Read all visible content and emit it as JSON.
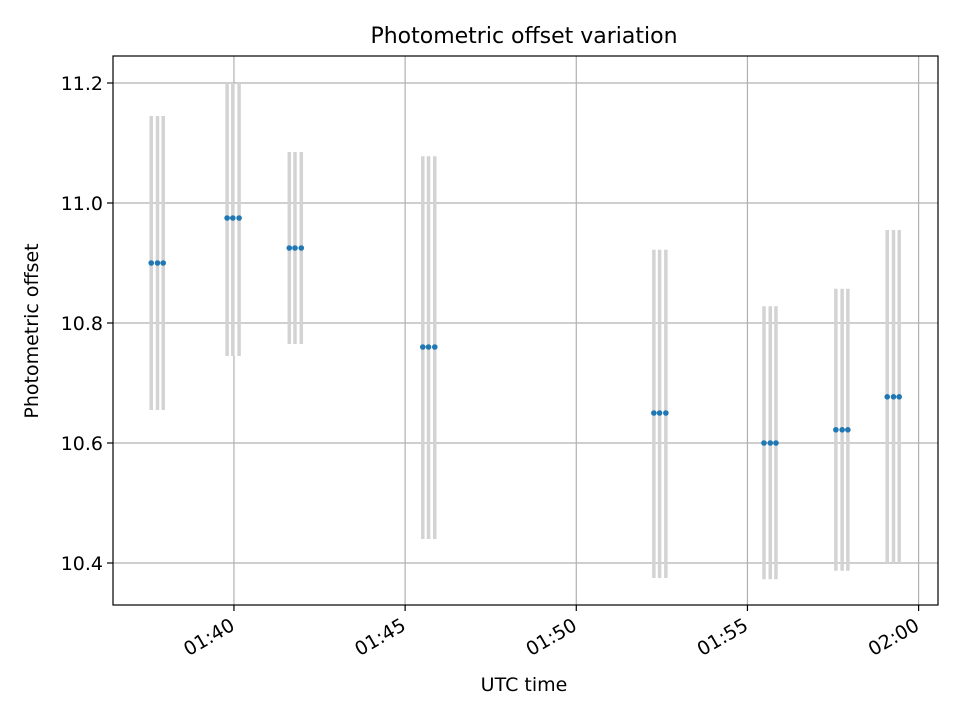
{
  "chart_data": {
    "type": "scatter",
    "title": "Photometric offset variation",
    "xlabel": "UTC time",
    "ylabel": "Photometric offset",
    "x_tick_labels": [
      "01:40",
      "01:45",
      "01:50",
      "01:55",
      "02:00"
    ],
    "x_ticks": [
      "01:40",
      "01:45",
      "01:50",
      "01:55",
      "02:00"
    ],
    "y_ticks": [
      10.4,
      10.6,
      10.8,
      11.0,
      11.2
    ],
    "y_tick_labels": [
      "10.4",
      "10.6",
      "10.8",
      "11.0",
      "11.2"
    ],
    "xlim": [
      "01:36:28",
      "02:00:34"
    ],
    "ylim": [
      10.33,
      11.245
    ],
    "grid": true,
    "legend": "none",
    "marker_color": "#1f77b4",
    "errorbar_color": "#d3d3d3",
    "points": [
      {
        "x": "01:37:35",
        "y": 10.9,
        "yerr_low": 10.655,
        "yerr_high": 11.145
      },
      {
        "x": "01:37:46",
        "y": 10.9,
        "yerr_low": 10.655,
        "yerr_high": 11.145
      },
      {
        "x": "01:37:56",
        "y": 10.9,
        "yerr_low": 10.655,
        "yerr_high": 11.145
      },
      {
        "x": "01:39:48",
        "y": 10.975,
        "yerr_low": 10.745,
        "yerr_high": 11.2
      },
      {
        "x": "01:39:58",
        "y": 10.975,
        "yerr_low": 10.745,
        "yerr_high": 11.2
      },
      {
        "x": "01:40:09",
        "y": 10.975,
        "yerr_low": 10.745,
        "yerr_high": 11.2
      },
      {
        "x": "01:41:37",
        "y": 10.925,
        "yerr_low": 10.765,
        "yerr_high": 11.085
      },
      {
        "x": "01:41:47",
        "y": 10.925,
        "yerr_low": 10.765,
        "yerr_high": 11.085
      },
      {
        "x": "01:41:58",
        "y": 10.925,
        "yerr_low": 10.765,
        "yerr_high": 11.085
      },
      {
        "x": "01:45:31",
        "y": 10.76,
        "yerr_low": 10.44,
        "yerr_high": 11.078
      },
      {
        "x": "01:45:41",
        "y": 10.76,
        "yerr_low": 10.44,
        "yerr_high": 11.078
      },
      {
        "x": "01:45:52",
        "y": 10.76,
        "yerr_low": 10.44,
        "yerr_high": 11.078
      },
      {
        "x": "01:52:16",
        "y": 10.65,
        "yerr_low": 10.375,
        "yerr_high": 10.922
      },
      {
        "x": "01:52:26",
        "y": 10.65,
        "yerr_low": 10.375,
        "yerr_high": 10.922
      },
      {
        "x": "01:52:37",
        "y": 10.65,
        "yerr_low": 10.375,
        "yerr_high": 10.922
      },
      {
        "x": "01:55:29",
        "y": 10.6,
        "yerr_low": 10.373,
        "yerr_high": 10.828
      },
      {
        "x": "01:55:40",
        "y": 10.6,
        "yerr_low": 10.373,
        "yerr_high": 10.828
      },
      {
        "x": "01:55:50",
        "y": 10.6,
        "yerr_low": 10.373,
        "yerr_high": 10.828
      },
      {
        "x": "01:57:35",
        "y": 10.622,
        "yerr_low": 10.387,
        "yerr_high": 10.857
      },
      {
        "x": "01:57:46",
        "y": 10.622,
        "yerr_low": 10.387,
        "yerr_high": 10.857
      },
      {
        "x": "01:57:56",
        "y": 10.622,
        "yerr_low": 10.387,
        "yerr_high": 10.857
      },
      {
        "x": "01:59:05",
        "y": 10.677,
        "yerr_low": 10.4,
        "yerr_high": 10.955
      },
      {
        "x": "01:59:16",
        "y": 10.677,
        "yerr_low": 10.4,
        "yerr_high": 10.955
      },
      {
        "x": "01:59:26",
        "y": 10.677,
        "yerr_low": 10.4,
        "yerr_high": 10.955
      }
    ]
  }
}
